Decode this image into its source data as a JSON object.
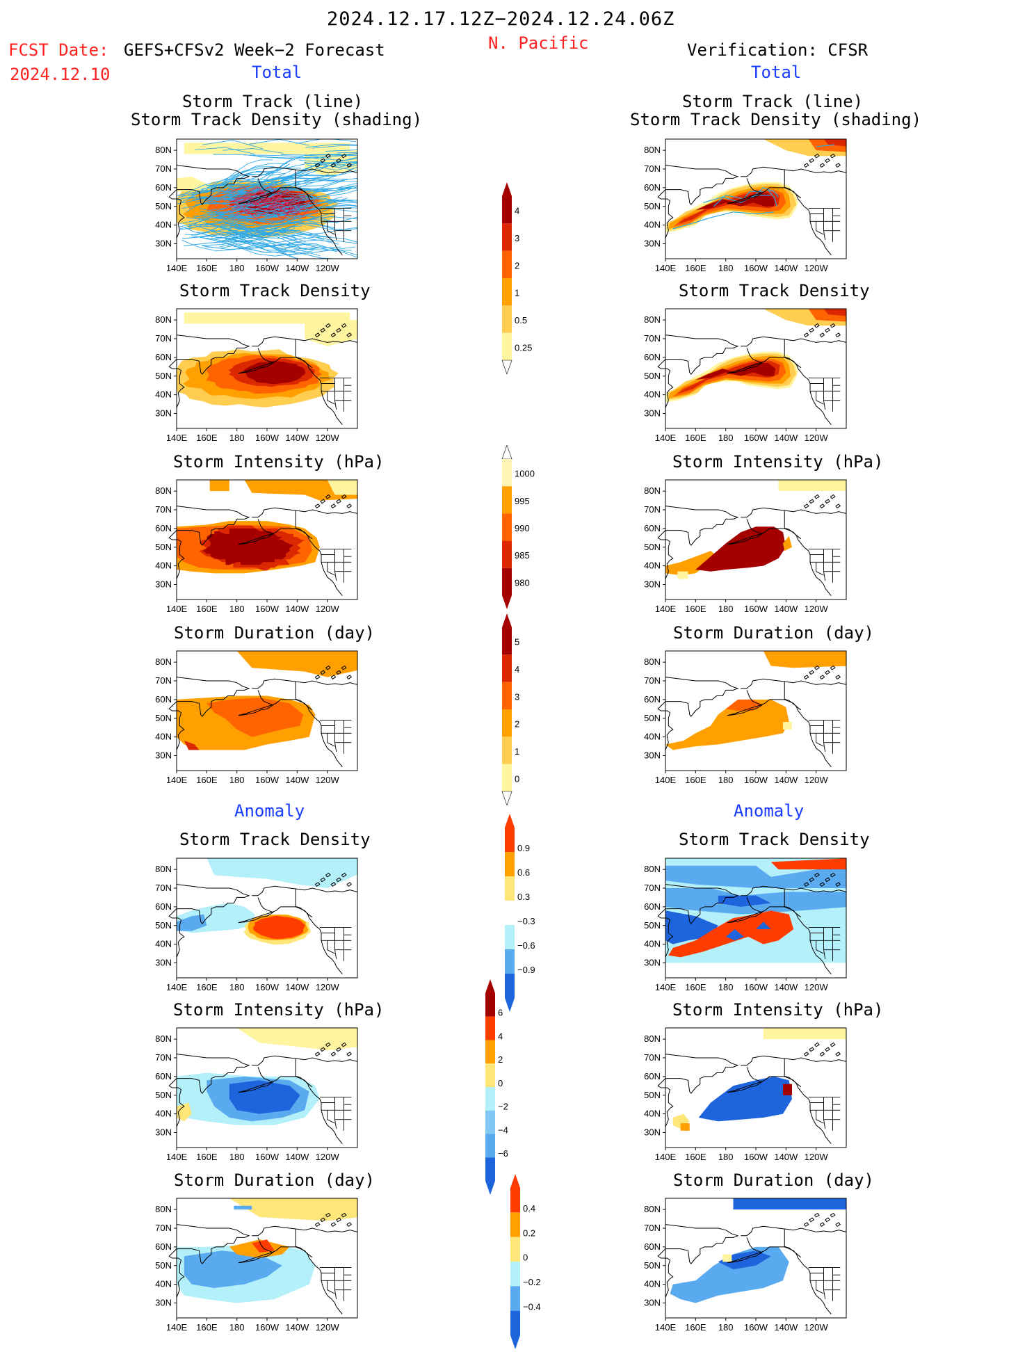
{
  "header": {
    "period": "2024.12.17.12Z−2024.12.24.06Z",
    "region": "N. Pacific",
    "fcst_label": "FCST Date:",
    "fcst_model": "GEFS+CFSv2 Week−2 Forecast",
    "fcst_date": "2024.12.10",
    "verification": "Verification: CFSR"
  },
  "sections": {
    "total": "Total",
    "anomaly": "Anomaly"
  },
  "panel_titles": {
    "track_line": "Storm Track (line)",
    "track_shading": "Storm Track Density (shading)",
    "density": "Storm Track Density",
    "intensity": "Storm Intensity (hPa)",
    "duration": "Storm Duration (day)"
  },
  "axes": {
    "lat_labels": [
      "80N",
      "70N",
      "60N",
      "50N",
      "40N",
      "30N"
    ],
    "lon_labels": [
      "140E",
      "160E",
      "180",
      "160W",
      "140W",
      "120W"
    ]
  },
  "colorbars": {
    "density_total": {
      "labels": [
        "4",
        "3",
        "2",
        "1",
        "0.5",
        "0.25"
      ],
      "colors": [
        "#a50000",
        "#dc2800",
        "#ff6400",
        "#ffa000",
        "#ffcd50",
        "#fff5a0"
      ]
    },
    "intensity_total": {
      "labels": [
        "1000",
        "995",
        "990",
        "985",
        "980"
      ],
      "colors": [
        "#fff5b4",
        "#ffa000",
        "#ff6400",
        "#dc2800",
        "#a50000"
      ]
    },
    "duration_total": {
      "labels": [
        "5",
        "4",
        "3",
        "2",
        "1",
        "0"
      ],
      "colors": [
        "#a50000",
        "#dc2800",
        "#ff6400",
        "#ffa000",
        "#ffcd50",
        "#fff5a0"
      ]
    },
    "density_anom": {
      "labels": [
        "0.9",
        "0.6",
        "0.3",
        "−0.3",
        "−0.6",
        "−0.9"
      ],
      "colors": [
        "#ff3c00",
        "#ffa000",
        "#ffe678",
        "#ffffff",
        "#b4f0fa",
        "#5aaaf0",
        "#1e64dc"
      ]
    },
    "intensity_anom": {
      "labels": [
        "6",
        "4",
        "2",
        "0",
        "−2",
        "−4",
        "−6"
      ],
      "colors": [
        "#a50000",
        "#ff3c00",
        "#ffa000",
        "#ffe678",
        "#b4f0fa",
        "#82c8f5",
        "#5aaaf0",
        "#1e64dc"
      ]
    },
    "duration_anom": {
      "labels": [
        "0.4",
        "0.2",
        "0",
        "−0.2",
        "−0.4"
      ],
      "colors": [
        "#ff3c00",
        "#ffa000",
        "#ffe678",
        "#b4f0fa",
        "#5aaaf0",
        "#1e64dc"
      ]
    }
  },
  "map_colors": {
    "forecast_track_lines": "#2ea8e6",
    "forecast_track_inner": "#d03060",
    "land_outline": "#000000"
  }
}
